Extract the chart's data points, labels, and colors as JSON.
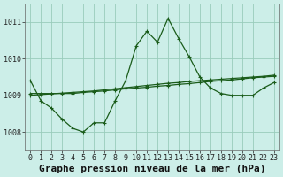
{
  "title": "Graphe pression niveau de la mer (hPa)",
  "hours": [
    0,
    1,
    2,
    3,
    4,
    5,
    6,
    7,
    8,
    9,
    10,
    11,
    12,
    13,
    14,
    15,
    16,
    17,
    18,
    19,
    20,
    21,
    22,
    23
  ],
  "yticks": [
    1008,
    1009,
    1010,
    1011
  ],
  "ylim": [
    1007.5,
    1011.5
  ],
  "xlim": [
    -0.5,
    23.5
  ],
  "background_color": "#cceee8",
  "grid_color": "#99ccbb",
  "line_color": "#1a5c1a",
  "series": [
    [
      1009.4,
      1008.85,
      1008.65,
      1008.35,
      1008.1,
      1008.0,
      1008.25,
      1008.25,
      1008.85,
      1009.4,
      1010.35,
      1010.75,
      1010.45,
      1011.1,
      1010.55,
      1010.05,
      1009.5,
      1009.2,
      1009.05,
      1009.0,
      1009.0,
      1009.0,
      1009.2,
      1009.35
    ],
    [
      1009.05,
      1009.05,
      1009.05,
      1009.05,
      1009.05,
      1009.08,
      1009.1,
      1009.12,
      1009.15,
      1009.18,
      1009.2,
      1009.22,
      1009.25,
      1009.27,
      1009.3,
      1009.32,
      1009.35,
      1009.38,
      1009.4,
      1009.42,
      1009.45,
      1009.48,
      1009.5,
      1009.52
    ],
    [
      1009.0,
      1009.02,
      1009.04,
      1009.06,
      1009.08,
      1009.1,
      1009.12,
      1009.15,
      1009.18,
      1009.21,
      1009.24,
      1009.27,
      1009.3,
      1009.33,
      1009.35,
      1009.38,
      1009.4,
      1009.42,
      1009.44,
      1009.46,
      1009.48,
      1009.5,
      1009.52,
      1009.55
    ]
  ],
  "title_fontsize": 8,
  "tick_fontsize": 6,
  "figwidth": 3.2,
  "figheight": 2.0,
  "dpi": 100
}
